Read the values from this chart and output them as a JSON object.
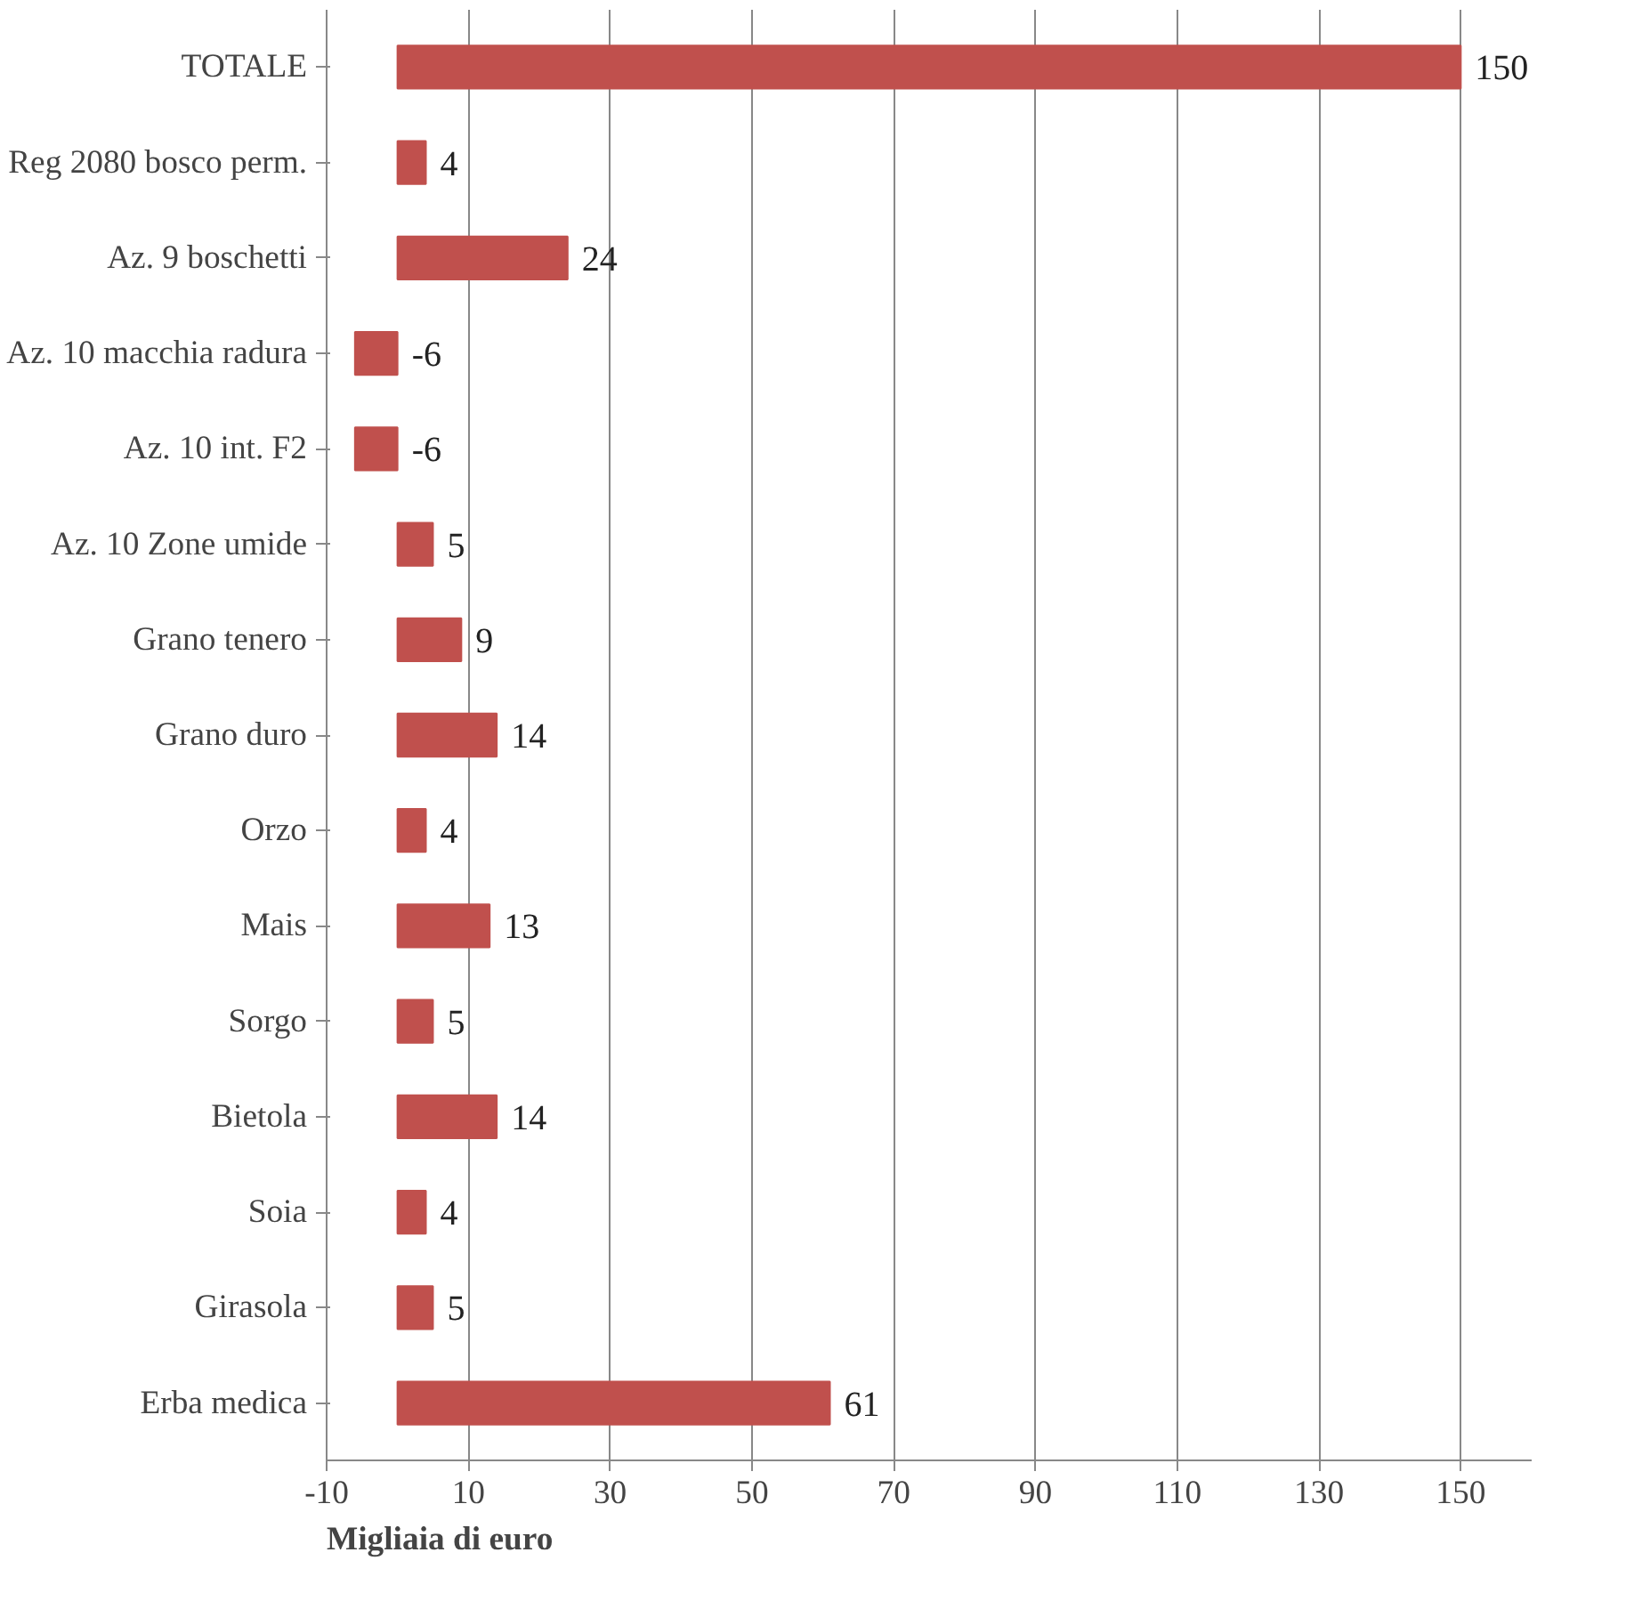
{
  "chart_data": {
    "type": "bar",
    "orientation": "horizontal",
    "xlabel": "Migliaia di euro",
    "categories": [
      "TOTALE",
      "Reg 2080 bosco perm.",
      "Az. 9 boschetti",
      "Az. 10 macchia radura",
      "Az. 10 int. F2",
      "Az. 10 Zone umide",
      "Grano tenero",
      "Grano duro",
      "Orzo",
      "Mais",
      "Sorgo",
      "Bietola",
      "Soia",
      "Girasola",
      "Erba medica"
    ],
    "values": [
      150,
      4,
      24,
      -6,
      -6,
      5,
      9,
      14,
      4,
      13,
      5,
      14,
      4,
      5,
      61
    ],
    "color": "#c0504d",
    "data_labels": true,
    "grid": "x",
    "xlim": [
      -10,
      160
    ],
    "xticks": [
      -10,
      10,
      30,
      50,
      70,
      90,
      110,
      130,
      150
    ]
  }
}
